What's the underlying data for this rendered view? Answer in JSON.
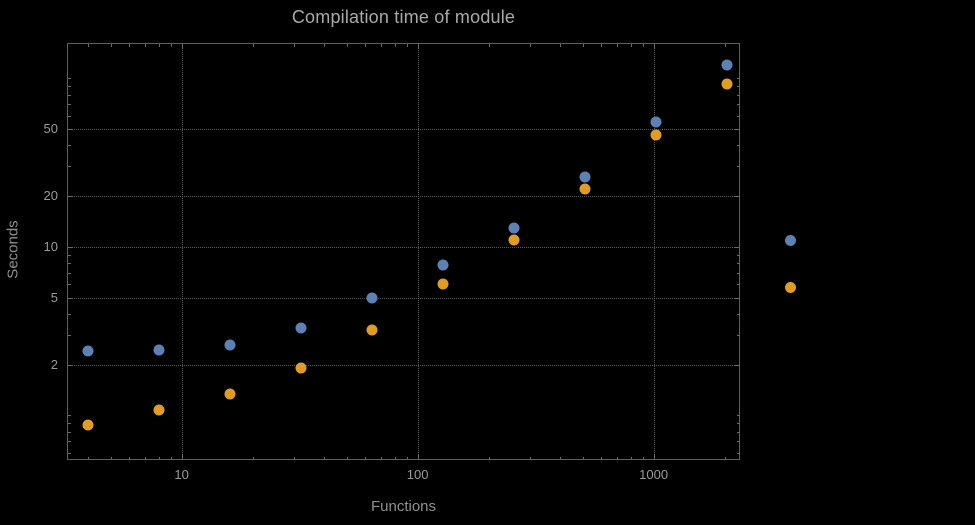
{
  "chart_data": {
    "type": "scatter",
    "title": "Compilation time of module",
    "xlabel": "Functions",
    "ylabel": "Seconds",
    "xscale": "log",
    "yscale": "log",
    "xlim": [
      3.3,
      2300
    ],
    "ylim": [
      0.55,
      160
    ],
    "xticks": [
      10,
      100,
      1000
    ],
    "yticks": [
      2,
      5,
      10,
      20,
      50
    ],
    "grid": true,
    "legend": {
      "position": "right",
      "labels_visible": false
    },
    "colors": {
      "series1": "#5e81b5",
      "series2": "#e19c24",
      "background": "#000000",
      "text": "#9a9a9a"
    },
    "series": [
      {
        "name": "series-1-blue",
        "color": "#5e81b5",
        "x": [
          4,
          8,
          16,
          32,
          64,
          128,
          256,
          512,
          1024,
          2048
        ],
        "y": [
          2.4,
          2.45,
          2.6,
          3.3,
          5.0,
          7.8,
          13,
          26,
          55,
          120
        ]
      },
      {
        "name": "series-2-orange",
        "color": "#e19c24",
        "x": [
          4,
          8,
          16,
          32,
          64,
          128,
          256,
          512,
          1024,
          2048
        ],
        "y": [
          0.87,
          1.07,
          1.33,
          1.9,
          3.2,
          6.0,
          11,
          22,
          46,
          92
        ]
      }
    ]
  }
}
